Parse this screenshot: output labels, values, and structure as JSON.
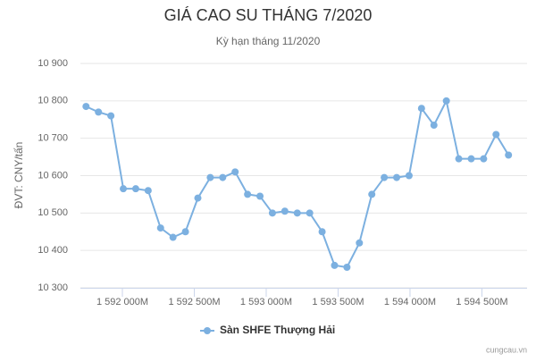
{
  "chart_data": {
    "type": "line",
    "title": "GIÁ CAO SU THÁNG 7/2020",
    "subtitle": "Kỳ hạn tháng 11/2020",
    "y_label": "ĐVT: CNY/tấn",
    "credit": "cungcau.vn",
    "x": [
      1591747200000,
      1591833600000,
      1591920000000,
      1592006400000,
      1592092800000,
      1592179200000,
      1592265600000,
      1592352000000,
      1592438400000,
      1592524800000,
      1592611200000,
      1592697600000,
      1592784000000,
      1592870400000,
      1592956800000,
      1593043200000,
      1593129600000,
      1593216000000,
      1593302400000,
      1593388800000,
      1593475200000,
      1593561600000,
      1593648000000,
      1593734400000,
      1593820800000,
      1593907200000,
      1593993600000,
      1594080000000,
      1594166400000,
      1594252800000,
      1594339200000,
      1594425600000,
      1594512000000,
      1594598400000,
      1594684800000
    ],
    "series": [
      {
        "name": "Sàn SHFE Thượng Hải",
        "color": "#7cb0e0",
        "values": [
          10785,
          10770,
          10760,
          10565,
          10565,
          10560,
          10460,
          10435,
          10450,
          10540,
          10595,
          10595,
          10610,
          10550,
          10545,
          10500,
          10505,
          10500,
          10500,
          10450,
          10360,
          10355,
          10420,
          10550,
          10595,
          10595,
          10600,
          10780,
          10735,
          10800,
          10645,
          10645,
          10645,
          10710,
          10655
        ]
      }
    ],
    "xlim": [
      1591708000000,
      1594814000000
    ],
    "xticks": [
      {
        "value": 1592000000000,
        "label": "1 592 000M"
      },
      {
        "value": 1592500000000,
        "label": "1 592 500M"
      },
      {
        "value": 1593000000000,
        "label": "1 593 000M"
      },
      {
        "value": 1593500000000,
        "label": "1 593 500M"
      },
      {
        "value": 1594000000000,
        "label": "1 594 000M"
      },
      {
        "value": 1594500000000,
        "label": "1 594 500M"
      }
    ],
    "ylim": [
      10300,
      10900
    ],
    "yticks": [
      {
        "value": 10300,
        "label": "10 300"
      },
      {
        "value": 10400,
        "label": "10 400"
      },
      {
        "value": 10500,
        "label": "10 500"
      },
      {
        "value": 10600,
        "label": "10 600"
      },
      {
        "value": 10700,
        "label": "10 700"
      },
      {
        "value": 10800,
        "label": "10 800"
      },
      {
        "value": 10900,
        "label": "10 900"
      }
    ],
    "grid": true,
    "legend": "bottom"
  }
}
